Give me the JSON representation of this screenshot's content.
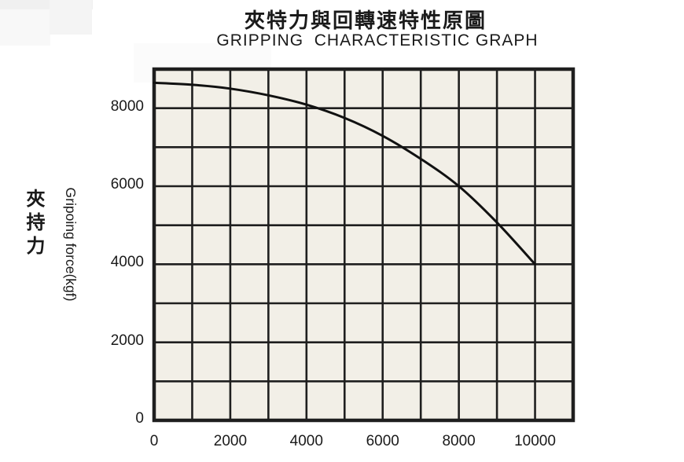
{
  "chart_data": {
    "type": "line",
    "title": "夾特力與回轉速特性原圖",
    "subtitle": "GRIPPING  CHARACTERISTIC GRAPH",
    "xlabel": "",
    "ylabel": "Gripoing force(kgf)",
    "ylabel_cjk": "夾持力",
    "x": [
      0,
      1000,
      2000,
      3000,
      4000,
      5000,
      6000,
      7000,
      8000,
      9000,
      10000
    ],
    "series": [
      {
        "name": "gripping-force-vs-rotation-speed",
        "values": [
          8650,
          8600,
          8500,
          8330,
          8090,
          7750,
          7290,
          6700,
          6000,
          5070,
          4000
        ]
      }
    ],
    "xlim": [
      0,
      11000
    ],
    "ylim": [
      0,
      9000
    ],
    "grid": true,
    "grid_step": 1000,
    "x_ticks": [
      0,
      2000,
      4000,
      6000,
      8000,
      10000
    ],
    "y_ticks": [
      0,
      2000,
      4000,
      6000,
      8000
    ],
    "x_tick_labels": [
      "0",
      "2000",
      "4000",
      "6000",
      "8000",
      "10000"
    ],
    "y_tick_labels": [
      "0",
      "2000",
      "4000",
      "6000",
      "8000"
    ],
    "legend_position": "none",
    "colors": {
      "plot_bg": "#f2efe7",
      "grid": "#1f1f1f",
      "curve": "#111111",
      "text": "#1a1a1a"
    }
  }
}
